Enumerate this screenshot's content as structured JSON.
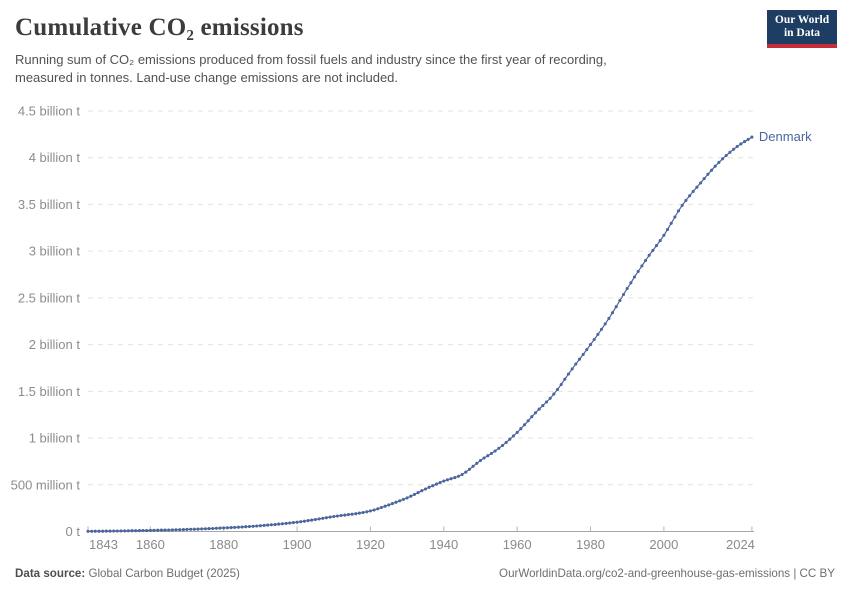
{
  "header": {
    "title": "Cumulative CO₂ emissions",
    "subtitle_line1": "Running sum of CO₂ emissions produced from fossil fuels and industry since the first year of recording,",
    "subtitle_line2": "measured in tonnes. Land-use change emissions are not included.",
    "logo": {
      "line1": "Our World",
      "line2": "in Data",
      "bg_color": "#1d3d63",
      "accent_color": "#c62f39"
    }
  },
  "chart_data": {
    "type": "line",
    "title": "Cumulative CO₂ emissions",
    "entity": "Denmark",
    "end_label": "Denmark",
    "line_color": "#4a669c",
    "unit": "tonnes",
    "x_range": [
      1843,
      2024
    ],
    "ylim_billion_t": [
      0,
      4.5
    ],
    "grid": "horizontal-dashed",
    "x_tick_labels": [
      "1843",
      "1860",
      "1880",
      "1900",
      "1920",
      "1940",
      "1960",
      "1980",
      "2000",
      "2024"
    ],
    "x_ticks": [
      1843,
      1860,
      1880,
      1900,
      1920,
      1940,
      1960,
      1980,
      2000,
      2024
    ],
    "y_ticks": [
      {
        "value_billion_t": 0,
        "label": "0 t"
      },
      {
        "value_billion_t": 0.5,
        "label": "500 million t"
      },
      {
        "value_billion_t": 1,
        "label": "1 billion t"
      },
      {
        "value_billion_t": 1.5,
        "label": "1.5 billion t"
      },
      {
        "value_billion_t": 2,
        "label": "2 billion t"
      },
      {
        "value_billion_t": 2.5,
        "label": "2.5 billion t"
      },
      {
        "value_billion_t": 3,
        "label": "3 billion t"
      },
      {
        "value_billion_t": 3.5,
        "label": "3.5 billion t"
      },
      {
        "value_billion_t": 4,
        "label": "4 billion t"
      },
      {
        "value_billion_t": 4.5,
        "label": "4.5 billion t"
      }
    ],
    "series": [
      {
        "name": "Denmark",
        "points_note": "cumulative CO2, billions of tonnes, anchor points read from chart; one dot per year on the curve",
        "years": [
          1843,
          1850,
          1860,
          1870,
          1880,
          1890,
          1900,
          1910,
          1920,
          1925,
          1930,
          1935,
          1940,
          1945,
          1950,
          1955,
          1960,
          1965,
          1970,
          1975,
          1980,
          1985,
          1990,
          1995,
          2000,
          2005,
          2010,
          2015,
          2020,
          2024
        ],
        "values_billion_t": [
          0.002,
          0.005,
          0.012,
          0.022,
          0.038,
          0.062,
          0.1,
          0.16,
          0.22,
          0.285,
          0.36,
          0.455,
          0.54,
          0.61,
          0.76,
          0.89,
          1.06,
          1.27,
          1.47,
          1.74,
          2.0,
          2.28,
          2.6,
          2.9,
          3.17,
          3.49,
          3.73,
          3.95,
          4.12,
          4.22
        ]
      }
    ]
  },
  "footer": {
    "source_label": "Data source:",
    "source_value": " Global Carbon Budget (2025)",
    "right_text": "OurWorldinData.org/co2-and-greenhouse-gas-emissions | CC BY"
  }
}
